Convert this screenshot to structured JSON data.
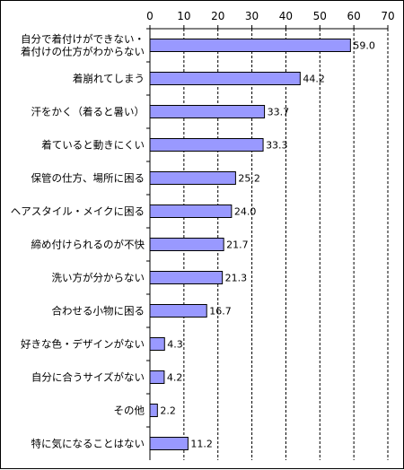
{
  "chart_data": {
    "type": "bar",
    "orientation": "horizontal",
    "title": "",
    "xlabel": "",
    "ylabel": "",
    "xlim": [
      0,
      70
    ],
    "ticks": [
      0,
      10,
      20,
      30,
      40,
      50,
      60,
      70
    ],
    "axis_position": "top",
    "grid": true,
    "bar_color": "#9999ff",
    "categories": [
      [
        "自分で着付けができない・",
        "着付けの仕方がわからない"
      ],
      [
        "着崩れてしまう"
      ],
      [
        "汗をかく（着ると暑い）"
      ],
      [
        "着ていると動きにくい"
      ],
      [
        "保管の仕方、場所に困る"
      ],
      [
        "ヘアスタイル・メイクに困る"
      ],
      [
        "締め付けられるのが不快"
      ],
      [
        "洗い方が分からない"
      ],
      [
        "合わせる小物に困る"
      ],
      [
        "好きな色・デザインがない"
      ],
      [
        "自分に合うサイズがない"
      ],
      [
        "その他"
      ],
      [
        "特に気になることはない"
      ]
    ],
    "values": [
      59.0,
      44.2,
      33.7,
      33.3,
      25.2,
      24.0,
      21.7,
      21.3,
      16.7,
      4.3,
      4.2,
      2.2,
      11.2
    ],
    "value_labels": [
      "59.0",
      "44.2",
      "33.7",
      "33.3",
      "25.2",
      "24.0",
      "21.7",
      "21.3",
      "16.7",
      "4.3",
      "4.2",
      "2.2",
      "11.2"
    ]
  }
}
